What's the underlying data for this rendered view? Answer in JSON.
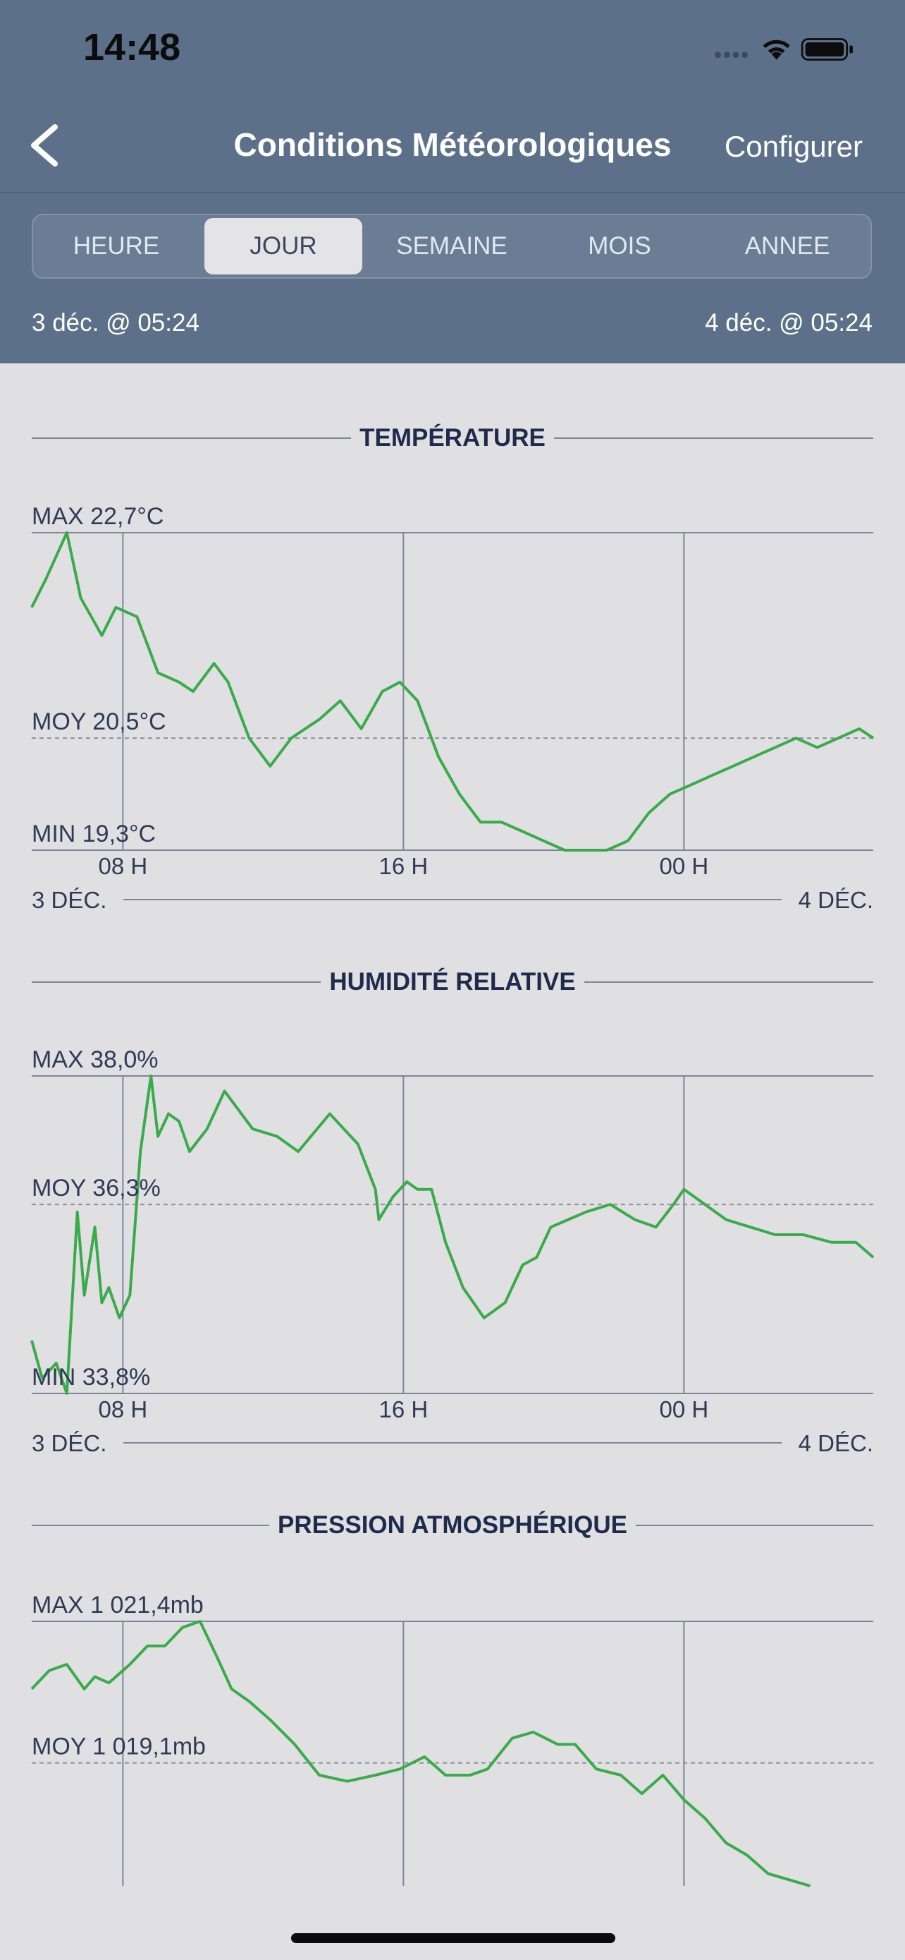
{
  "status_bar": {
    "time": "14:48"
  },
  "nav": {
    "title": "Conditions Météorologiques",
    "action": "Configurer"
  },
  "tabs": [
    {
      "label": "HEURE",
      "active": false
    },
    {
      "label": "JOUR",
      "active": true
    },
    {
      "label": "SEMAINE",
      "active": false
    },
    {
      "label": "MOIS",
      "active": false
    },
    {
      "label": "ANNEE",
      "active": false
    }
  ],
  "range": {
    "start": "3 déc. @ 05:24",
    "end": "4 déc. @ 05:24"
  },
  "colors": {
    "header": "#5c7189",
    "line": "#3aab4a",
    "background": "#e0e0e2"
  },
  "chart_data": [
    {
      "type": "line",
      "title": "TEMPÉRATURE",
      "max_label": "MAX 22,7°C",
      "mean_label": "MOY 20,5°C",
      "min_label": "MIN 19,3°C",
      "ylim": [
        19.3,
        22.7
      ],
      "mean": 20.5,
      "x_ticks": [
        "08 H",
        "16 H",
        "00 H"
      ],
      "x_tick_hours": [
        2.6,
        10.6,
        18.6
      ],
      "x_start_label": "3 DÉC.",
      "x_end_label": "4 DÉC.",
      "x_hours": [
        0,
        0.4,
        1.0,
        1.4,
        2.0,
        2.4,
        3.0,
        3.6,
        4.2,
        4.6,
        5.2,
        5.6,
        6.2,
        6.8,
        7.4,
        8.2,
        8.8,
        9.4,
        10.0,
        10.5,
        11.0,
        11.6,
        12.2,
        12.8,
        13.4,
        14.0,
        14.6,
        15.2,
        15.8,
        16.4,
        17.0,
        17.6,
        18.2,
        18.8,
        19.4,
        20.0,
        20.6,
        21.2,
        21.8,
        22.4,
        23.0,
        23.6,
        24.0
      ],
      "y": [
        21.9,
        22.2,
        22.7,
        22.0,
        21.6,
        21.9,
        21.8,
        21.2,
        21.1,
        21.0,
        21.3,
        21.1,
        20.5,
        20.2,
        20.5,
        20.7,
        20.9,
        20.6,
        21.0,
        21.1,
        20.9,
        20.3,
        19.9,
        19.6,
        19.6,
        19.5,
        19.4,
        19.3,
        19.3,
        19.3,
        19.4,
        19.7,
        19.9,
        20.0,
        20.1,
        20.2,
        20.3,
        20.4,
        20.5,
        20.4,
        20.5,
        20.6,
        20.5
      ]
    },
    {
      "type": "line",
      "title": "HUMIDITÉ RELATIVE",
      "max_label": "MAX 38,0%",
      "mean_label": "MOY 36,3%",
      "min_label": "MIN 33,8%",
      "ylim": [
        33.8,
        38.0
      ],
      "mean": 36.3,
      "x_ticks": [
        "08 H",
        "16 H",
        "00 H"
      ],
      "x_tick_hours": [
        2.6,
        10.6,
        18.6
      ],
      "x_start_label": "3 DÉC.",
      "x_end_label": "4 DÉC.",
      "x_hours": [
        0,
        0.3,
        0.7,
        1.0,
        1.3,
        1.5,
        1.8,
        2.0,
        2.2,
        2.5,
        2.8,
        3.1,
        3.4,
        3.6,
        3.9,
        4.2,
        4.5,
        5.0,
        5.5,
        6.3,
        7.0,
        7.6,
        8.5,
        9.3,
        9.8,
        9.9,
        10.3,
        10.7,
        11.0,
        11.4,
        11.8,
        12.3,
        12.9,
        13.5,
        14.0,
        14.4,
        14.8,
        15.3,
        15.8,
        16.5,
        17.2,
        17.8,
        18.3,
        18.6,
        19.2,
        19.8,
        20.5,
        21.2,
        22.0,
        22.8,
        23.5,
        24.0
      ],
      "y": [
        34.5,
        34.0,
        34.2,
        33.8,
        36.2,
        35.1,
        36.0,
        35.0,
        35.2,
        34.8,
        35.1,
        37.0,
        38.0,
        37.2,
        37.5,
        37.4,
        37.0,
        37.3,
        37.8,
        37.3,
        37.2,
        37.0,
        37.5,
        37.1,
        36.5,
        36.1,
        36.4,
        36.6,
        36.5,
        36.5,
        35.8,
        35.2,
        34.8,
        35.0,
        35.5,
        35.6,
        36.0,
        36.1,
        36.2,
        36.3,
        36.1,
        36.0,
        36.3,
        36.5,
        36.3,
        36.1,
        36.0,
        35.9,
        35.9,
        35.8,
        35.8,
        35.6
      ]
    },
    {
      "type": "line",
      "title": "PRESSION ATMOSPHÉRIQUE",
      "max_label": "MAX 1 021,4mb",
      "mean_label": "MOY 1 019,1mb",
      "ylim": [
        1017.1,
        1021.4
      ],
      "mean": 1019.1,
      "x_tick_hours": [
        2.6,
        10.6,
        18.6
      ],
      "x_hours": [
        0,
        0.5,
        1.0,
        1.5,
        1.8,
        2.2,
        2.8,
        3.3,
        3.8,
        4.3,
        4.8,
        5.3,
        5.7,
        6.2,
        6.8,
        7.5,
        8.2,
        9.0,
        9.8,
        10.5,
        11.2,
        11.8,
        12.5,
        13.0,
        13.7,
        14.3,
        15.0,
        15.5,
        16.1,
        16.8,
        17.4,
        18.0,
        18.6,
        19.2,
        19.8,
        20.4,
        21.0,
        21.6,
        22.2
      ],
      "y": [
        1020.3,
        1020.6,
        1020.7,
        1020.3,
        1020.5,
        1020.4,
        1020.7,
        1021.0,
        1021.0,
        1021.3,
        1021.4,
        1020.8,
        1020.3,
        1020.1,
        1019.8,
        1019.4,
        1018.9,
        1018.8,
        1018.9,
        1019.0,
        1019.2,
        1018.9,
        1018.9,
        1019.0,
        1019.5,
        1019.6,
        1019.4,
        1019.4,
        1019.0,
        1018.9,
        1018.6,
        1018.9,
        1018.5,
        1018.2,
        1017.8,
        1017.6,
        1017.3,
        1017.2,
        1017.1
      ]
    }
  ]
}
